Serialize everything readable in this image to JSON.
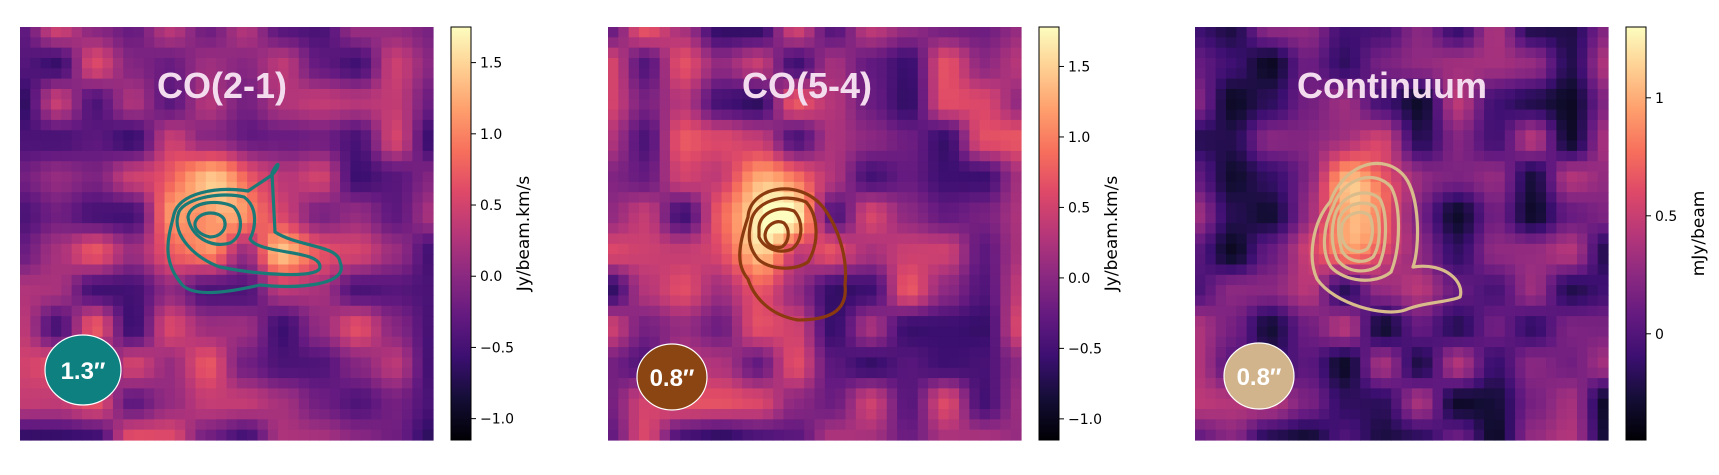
{
  "chart_data": [
    {
      "type": "heatmap",
      "title": "CO(2-1)",
      "colormap": "magma",
      "colorbar": {
        "label": "Jy/beam.km/s",
        "range": [
          -1.15,
          1.75
        ],
        "ticks": [
          -1.0,
          -0.5,
          0.0,
          0.5,
          1.0,
          1.5
        ],
        "tick_labels": [
          "−1.0",
          "−0.5",
          "0.0",
          "0.5",
          "1.0",
          "1.5"
        ]
      },
      "beam_label": "1.3″",
      "beam_color": "#0e8080",
      "contour_color": "#1a7a78",
      "source": {
        "peak": 1.55,
        "cx": 0.48,
        "cy": 0.42
      },
      "contour_levels": 4
    },
    {
      "type": "heatmap",
      "title": "CO(5-4)",
      "colormap": "magma",
      "colorbar": {
        "label": "Jy/beam.km/s",
        "range": [
          -1.15,
          1.78
        ],
        "ticks": [
          -1.0,
          -0.5,
          0.0,
          0.5,
          1.0,
          1.5
        ],
        "tick_labels": [
          "−1.0",
          "−0.5",
          "0.0",
          "0.5",
          "1.0",
          "1.5"
        ]
      },
      "beam_label": "0.8″",
      "beam_color": "#8b4513",
      "contour_color": "#8b3a10",
      "source": {
        "peak": 1.7,
        "cx": 0.4,
        "cy": 0.47
      },
      "contour_levels": 4
    },
    {
      "type": "heatmap",
      "title": "Continuum",
      "colormap": "magma",
      "colorbar": {
        "label": "mJy/beam",
        "range": [
          -0.45,
          1.3
        ],
        "ticks": [
          0,
          0.5,
          1
        ],
        "tick_labels": [
          "0",
          "0.5",
          "1"
        ]
      },
      "beam_label": "0.8″",
      "beam_color": "#d2b48c",
      "contour_color": "#d9bc8c",
      "source": {
        "peak": 1.28,
        "cx": 0.4,
        "cy": 0.45
      },
      "contour_levels": 5
    }
  ]
}
